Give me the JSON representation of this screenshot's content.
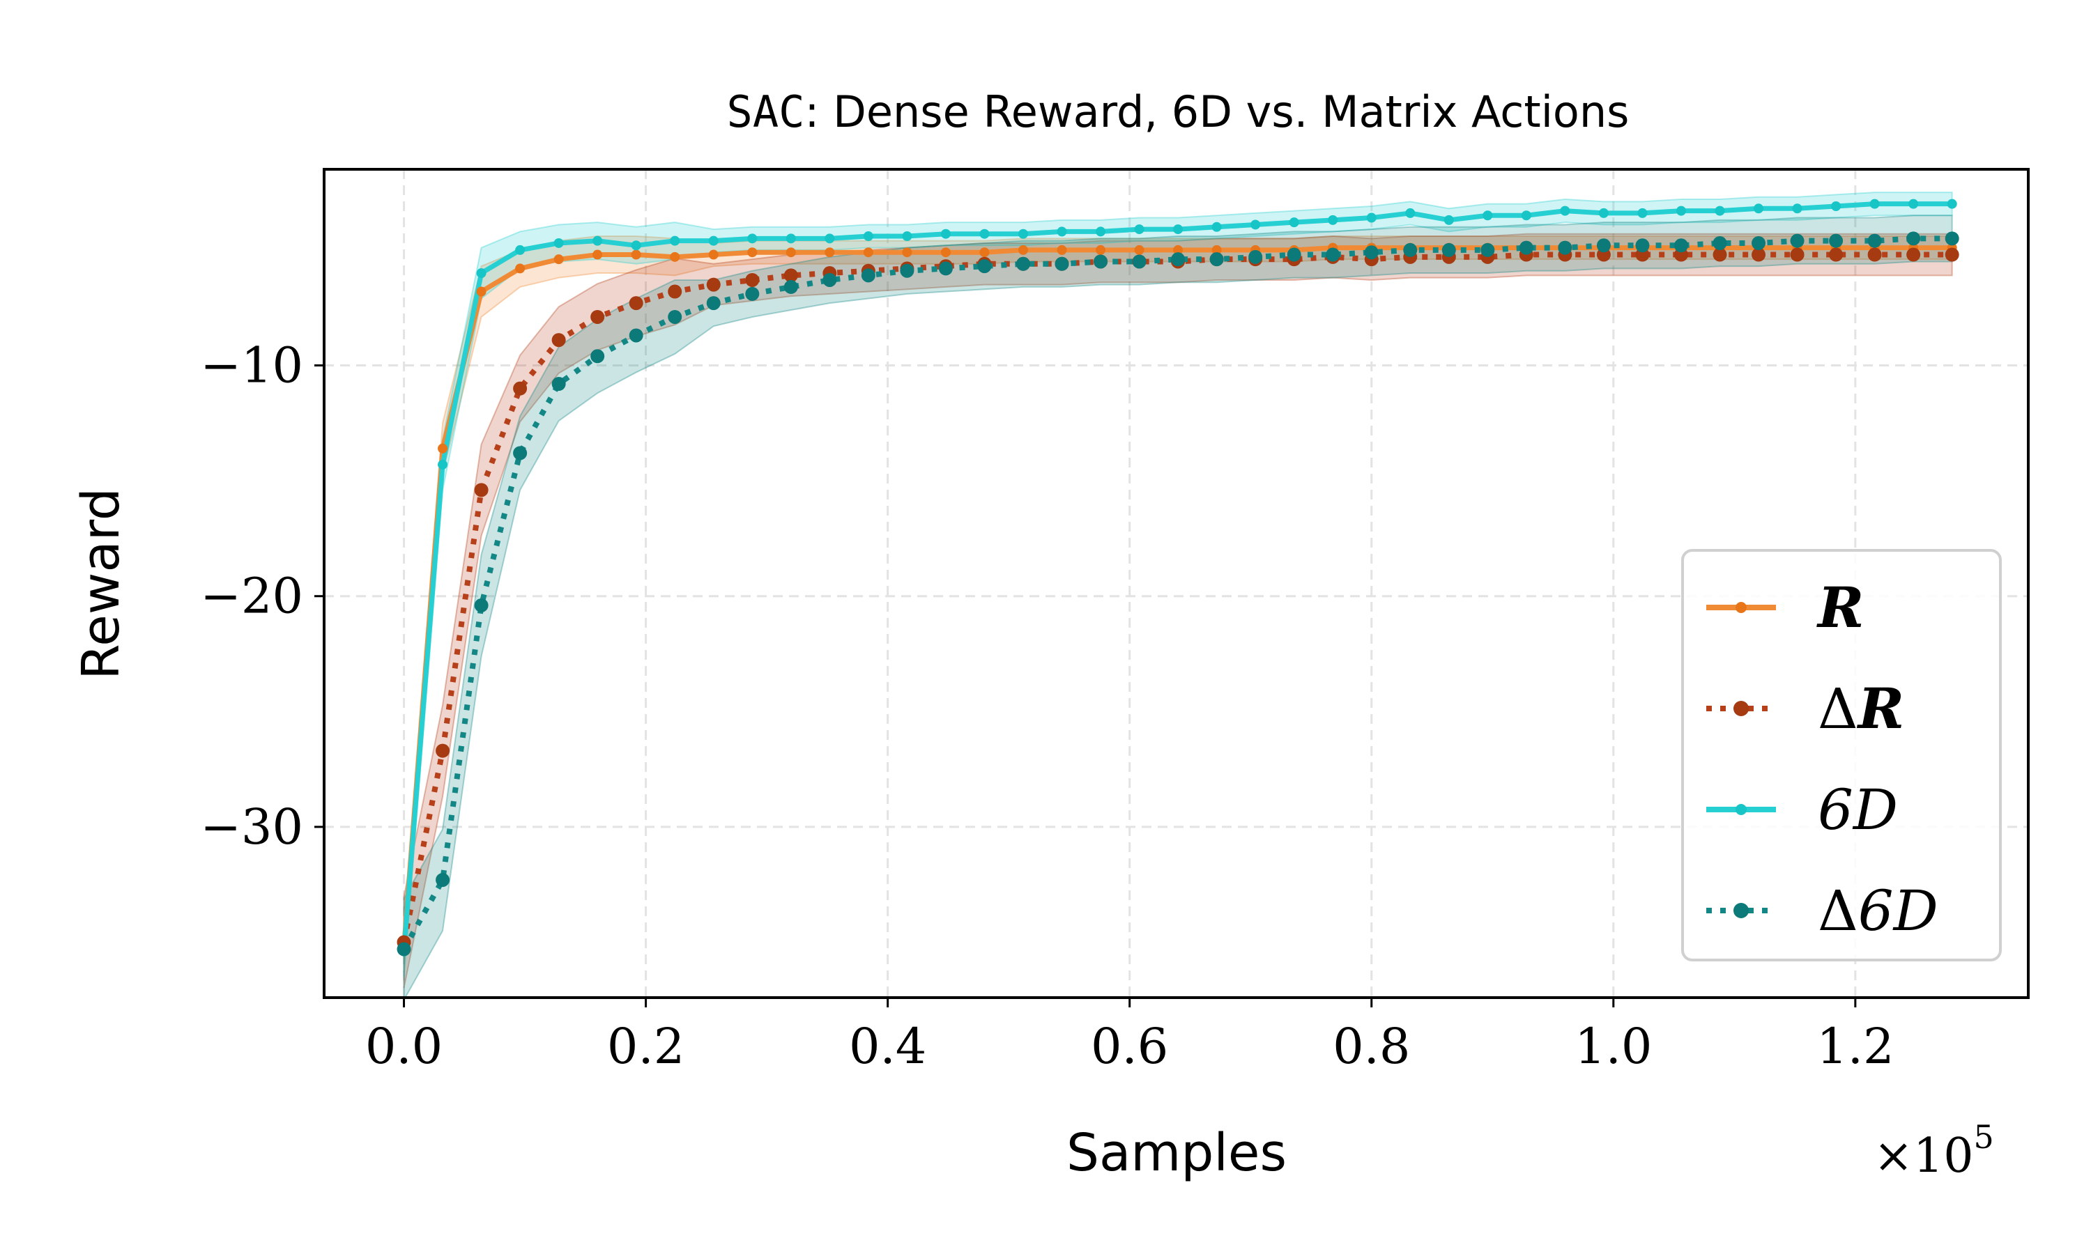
{
  "chart_data": {
    "type": "line",
    "title_code": "SAC",
    "title_rest": ": Dense Reward, 6D vs. Matrix Actions",
    "xlabel": "Samples",
    "ylabel": "Reward",
    "x_multiplier": "×10",
    "x_multiplier_exp": "5",
    "xlim": [
      -0.066,
      1.343
    ],
    "ylim": [
      -37.4,
      -1.5
    ],
    "xticks": [
      0.0,
      0.2,
      0.4,
      0.6,
      0.8,
      1.0,
      1.2
    ],
    "xtick_labels": [
      "0.0",
      "0.2",
      "0.4",
      "0.6",
      "0.8",
      "1.0",
      "1.2"
    ],
    "yticks": [
      -10,
      -20,
      -30
    ],
    "ytick_labels": [
      "−10",
      "−20",
      "−30"
    ],
    "grid": true,
    "legend_position": "lower-right",
    "x_step": 0.032,
    "x_count": 41,
    "series": [
      {
        "name": "R",
        "legend_symbol": "R",
        "legend_prefix": "",
        "bold": true,
        "italic": true,
        "color": "#f08a35",
        "marker_color": "#e8751a",
        "style": "solid",
        "band": 0.5,
        "values": [
          -35.2,
          -13.6,
          -6.8,
          -5.8,
          -5.4,
          -5.2,
          -5.2,
          -5.3,
          -5.2,
          -5.1,
          -5.1,
          -5.1,
          -5.1,
          -5.1,
          -5.1,
          -5.1,
          -5.0,
          -5.0,
          -5.0,
          -5.0,
          -5.0,
          -5.0,
          -5.0,
          -5.0,
          -4.9,
          -4.9,
          -4.9,
          -4.9,
          -4.9,
          -4.9,
          -4.9,
          -4.9,
          -4.9,
          -4.9,
          -4.9,
          -4.9,
          -4.9,
          -4.9,
          -4.9,
          -4.9,
          -4.9
        ]
      },
      {
        "name": "ΔR",
        "legend_symbol": "R",
        "legend_prefix": "Δ",
        "bold": true,
        "italic": true,
        "color": "#b5401a",
        "marker_color": "#a63a10",
        "style": "dotted",
        "band": 0.9,
        "values": [
          -35.0,
          -26.7,
          -15.4,
          -11.0,
          -8.9,
          -7.9,
          -7.3,
          -6.8,
          -6.5,
          -6.3,
          -6.1,
          -6.0,
          -5.9,
          -5.8,
          -5.7,
          -5.6,
          -5.6,
          -5.6,
          -5.5,
          -5.5,
          -5.5,
          -5.4,
          -5.4,
          -5.4,
          -5.3,
          -5.4,
          -5.3,
          -5.3,
          -5.3,
          -5.2,
          -5.2,
          -5.2,
          -5.2,
          -5.2,
          -5.2,
          -5.2,
          -5.2,
          -5.2,
          -5.2,
          -5.2,
          -5.2
        ]
      },
      {
        "name": "6D",
        "legend_symbol": "6D",
        "legend_prefix": "",
        "bold": false,
        "italic": true,
        "color": "#26cfd1",
        "marker_color": "#17c5c7",
        "style": "solid",
        "band": 0.5,
        "values": [
          -35.4,
          -14.3,
          -6.0,
          -5.0,
          -4.7,
          -4.6,
          -4.8,
          -4.6,
          -4.6,
          -4.5,
          -4.5,
          -4.5,
          -4.4,
          -4.4,
          -4.3,
          -4.3,
          -4.3,
          -4.2,
          -4.2,
          -4.1,
          -4.1,
          -4.0,
          -3.9,
          -3.8,
          -3.7,
          -3.6,
          -3.4,
          -3.7,
          -3.5,
          -3.5,
          -3.3,
          -3.4,
          -3.4,
          -3.3,
          -3.3,
          -3.2,
          -3.2,
          -3.1,
          -3.0,
          -3.0,
          -3.0
        ]
      },
      {
        "name": "Δ6D",
        "legend_symbol": "6D",
        "legend_prefix": "Δ",
        "bold": false,
        "italic": true,
        "color": "#128786",
        "marker_color": "#0b7a79",
        "style": "dotted",
        "band": 1.0,
        "values": [
          -35.3,
          -32.3,
          -20.4,
          -13.8,
          -10.8,
          -9.6,
          -8.7,
          -7.9,
          -7.3,
          -6.9,
          -6.6,
          -6.3,
          -6.1,
          -5.9,
          -5.8,
          -5.7,
          -5.6,
          -5.6,
          -5.5,
          -5.5,
          -5.4,
          -5.4,
          -5.3,
          -5.2,
          -5.2,
          -5.1,
          -5.0,
          -5.0,
          -5.0,
          -4.9,
          -4.9,
          -4.8,
          -4.8,
          -4.8,
          -4.7,
          -4.7,
          -4.6,
          -4.6,
          -4.6,
          -4.5,
          -4.5
        ]
      }
    ]
  }
}
